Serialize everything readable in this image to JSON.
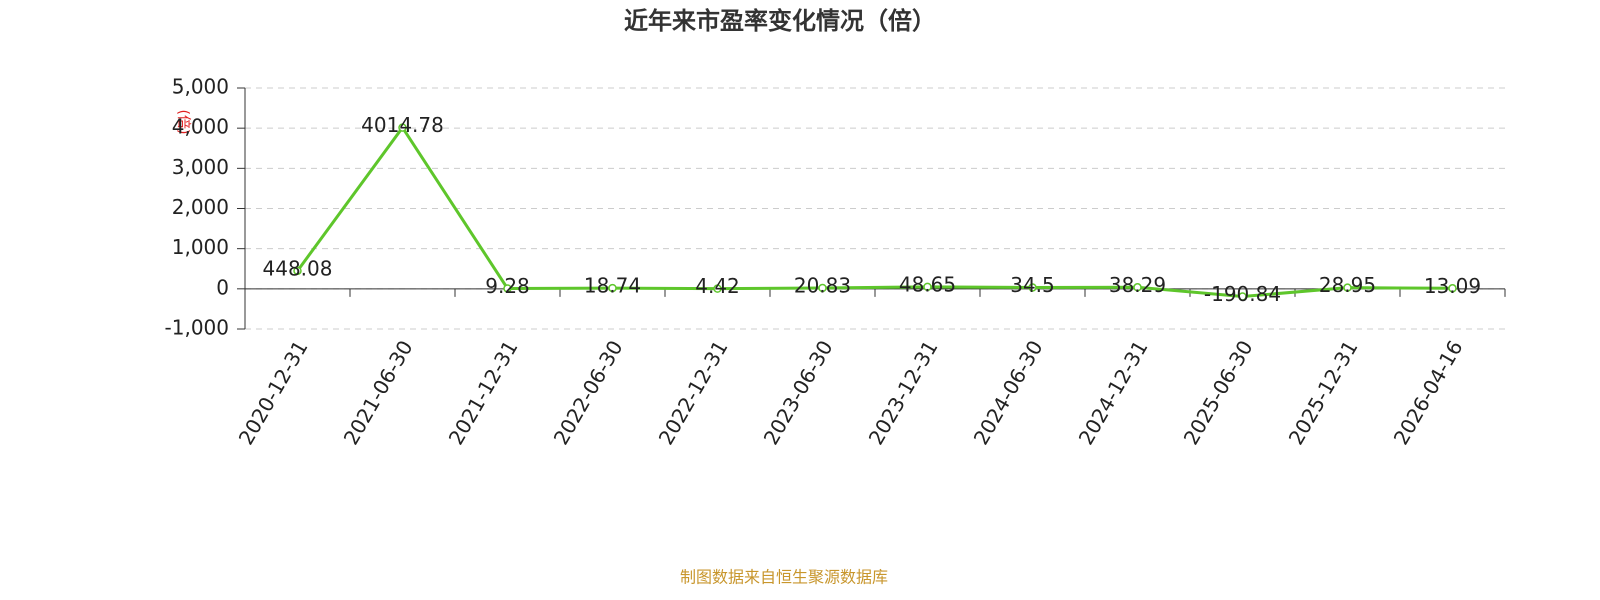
{
  "chart_data": {
    "type": "line",
    "title": "近年来市盈率变化情况（倍）",
    "y_label": "(倍)",
    "source": "制图数据来自恒生聚源数据库",
    "categories": [
      "2020-12-31",
      "2021-06-30",
      "2021-12-31",
      "2022-06-30",
      "2022-12-31",
      "2023-06-30",
      "2023-12-31",
      "2024-06-30",
      "2024-12-31",
      "2025-06-30",
      "2025-12-31",
      "2026-04-16"
    ],
    "values": [
      448.08,
      4014.78,
      9.28,
      18.74,
      4.42,
      20.83,
      48.65,
      34.5,
      38.29,
      -190.84,
      28.95,
      13.09
    ],
    "color": "#5ec62b",
    "ylim": [
      -1000,
      5000
    ],
    "yticks": [
      {
        "value": -1000,
        "label": "-1,000"
      },
      0,
      {
        "value": 1000,
        "label": "1,000"
      },
      {
        "value": 2000,
        "label": "2,000"
      },
      {
        "value": 3000,
        "label": "3,000"
      },
      {
        "value": 4000,
        "label": "4,000"
      },
      {
        "value": 5000,
        "label": "5,000"
      }
    ],
    "grid": true
  }
}
